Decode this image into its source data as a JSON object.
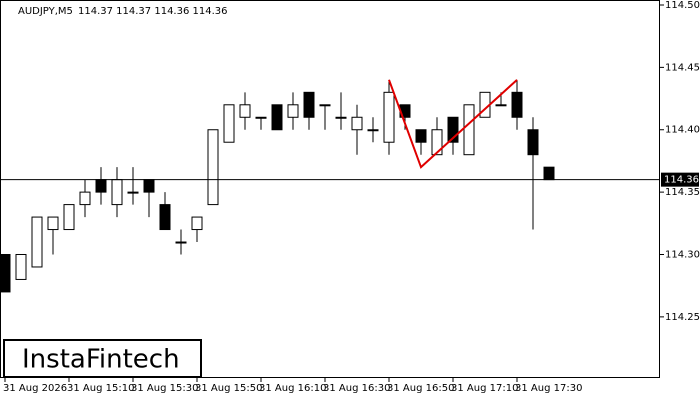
{
  "chart_data": {
    "type": "candlestick",
    "title": "AUDJPY,M5",
    "subtitle": "114.37 114.37 114.36 114.36",
    "logo": "InstaFintech",
    "categories": [
      "31 Aug 2026",
      null,
      null,
      null,
      "31 Aug 15:10",
      null,
      null,
      null,
      "31 Aug 15:30",
      null,
      null,
      null,
      "31 Aug 15:50",
      null,
      null,
      null,
      "31 Aug 16:10",
      null,
      null,
      null,
      "31 Aug 16:30",
      null,
      null,
      null,
      "31 Aug 16:50",
      null,
      null,
      null,
      "31 Aug 17:10",
      null,
      null,
      null,
      "31 Aug 17:30",
      null,
      null
    ],
    "open": [
      114.3,
      114.28,
      114.29,
      114.32,
      114.32,
      114.34,
      114.36,
      114.34,
      114.35,
      114.36,
      114.34,
      114.31,
      114.32,
      114.34,
      114.39,
      114.41,
      114.41,
      114.42,
      114.41,
      114.43,
      114.42,
      114.41,
      114.4,
      114.4,
      114.39,
      114.42,
      114.4,
      114.38,
      114.41,
      114.38,
      114.41,
      114.42,
      114.43,
      114.4,
      114.37
    ],
    "high": [
      114.3,
      114.3,
      114.33,
      114.33,
      114.34,
      114.36,
      114.37,
      114.37,
      114.37,
      114.36,
      114.35,
      114.32,
      114.33,
      114.4,
      114.42,
      114.43,
      114.41,
      114.42,
      114.43,
      114.43,
      114.42,
      114.43,
      114.42,
      114.41,
      114.44,
      114.42,
      114.4,
      114.41,
      114.41,
      114.42,
      114.43,
      114.43,
      114.44,
      114.41,
      114.37
    ],
    "low": [
      114.27,
      114.28,
      114.29,
      114.3,
      114.32,
      114.33,
      114.34,
      114.33,
      114.34,
      114.33,
      114.32,
      114.3,
      114.31,
      114.34,
      114.39,
      114.4,
      114.4,
      114.4,
      114.4,
      114.4,
      114.4,
      114.4,
      114.38,
      114.39,
      114.38,
      114.4,
      114.38,
      114.38,
      114.38,
      114.38,
      114.41,
      114.42,
      114.4,
      114.32,
      114.36
    ],
    "close": [
      114.27,
      114.3,
      114.33,
      114.33,
      114.34,
      114.35,
      114.35,
      114.36,
      114.35,
      114.35,
      114.32,
      114.31,
      114.33,
      114.4,
      114.42,
      114.42,
      114.41,
      114.4,
      114.42,
      114.41,
      114.42,
      114.41,
      114.41,
      114.4,
      114.43,
      114.41,
      114.39,
      114.4,
      114.39,
      114.42,
      114.43,
      114.42,
      114.41,
      114.38,
      114.36
    ],
    "up_color": "#ffffff",
    "down_color": "#000000",
    "ylim": [
      114.201,
      114.504
    ],
    "yticks": [
      {
        "value": 114.5,
        "label": "114.50"
      },
      114.45,
      {
        "value": 114.4,
        "label": "114.40"
      },
      114.35,
      {
        "value": 114.3,
        "label": "114.30"
      },
      114.25
    ],
    "current_price": {
      "value": 114.36,
      "label": "114.36"
    },
    "pattern": {
      "color": "#e00000",
      "at": [
        24,
        26,
        32
      ],
      "values": [
        114.44,
        114.37,
        114.44
      ]
    }
  }
}
